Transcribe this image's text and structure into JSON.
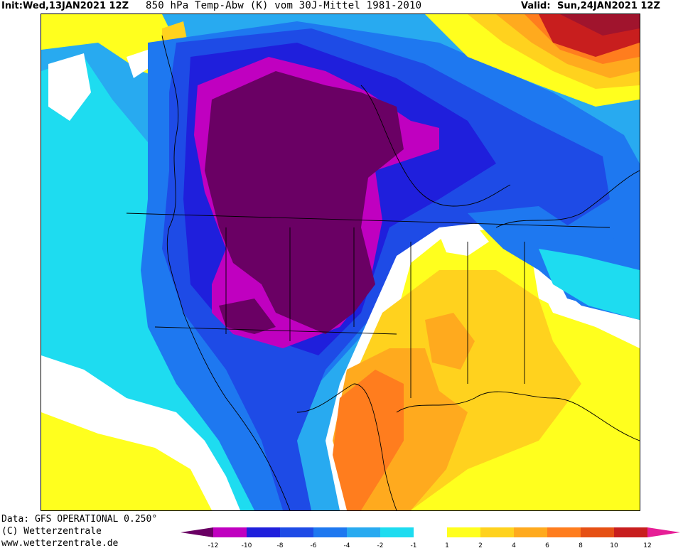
{
  "header": {
    "init_label": "Init:",
    "init_value": "Wed,13JAN2021 12Z",
    "title": "850 hPa Temp-Abw (K) vom 30J-Mittel 1981-2010",
    "valid_label": "Valid:",
    "valid_value": "Sun,24JAN2021 12Z"
  },
  "credits": {
    "line1": "Data: GFS OPERATIONAL 0.250°",
    "line2": "(C) Wetterzentrale",
    "line3": "www.wetterzentrale.de"
  },
  "legend": {
    "ticks": [
      "-12",
      "-10",
      "-8",
      "-6",
      "-4",
      "-2",
      "-1",
      "1",
      "2",
      "4",
      "6",
      "8",
      "10",
      "12"
    ],
    "colors": [
      "#c000c0",
      "#1f1fdc",
      "#1e4be6",
      "#1e78f0",
      "#28aaf0",
      "#1edcf0",
      "#ffffff",
      "#ffff1e",
      "#ffd21e",
      "#ffaa1e",
      "#ff7d1e",
      "#e65014",
      "#c81e1e"
    ],
    "arrow_left_color": "#6a0064",
    "arrow_right_color": "#e61e96"
  },
  "map_colors": {
    "deep_purple": "#6a0064",
    "magenta": "#c000c0",
    "dark_blue": "#1f1fdc",
    "blue": "#1e4be6",
    "mid_blue": "#1e78f0",
    "light_blue": "#28aaf0",
    "cyan": "#1edcf0",
    "white": "#ffffff",
    "yellow": "#ffff1e",
    "gold": "#ffd21e",
    "orange": "#ffaa1e",
    "dark_orange": "#ff7d1e",
    "red_orange": "#e65014",
    "dark_red": "#c81e1e",
    "crimson": "#a0142d",
    "pink": "#e61e96"
  }
}
